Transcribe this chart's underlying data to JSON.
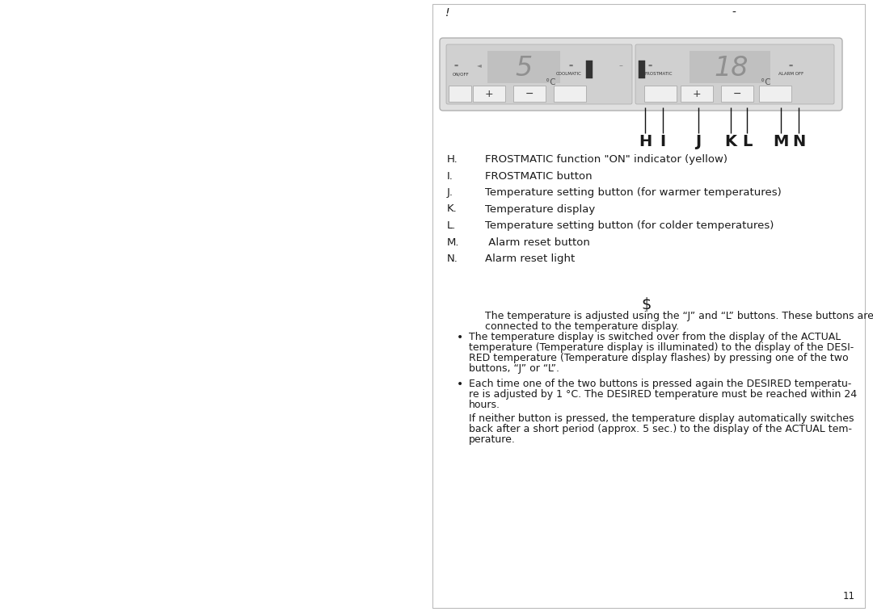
{
  "page_bg": "#ffffff",
  "border_color": "#aaaaaa",
  "text_color": "#1a1a1a",
  "header_left": "!",
  "header_right": "-",
  "items": [
    [
      "H.",
      "FROSTMATIC function \"ON\" indicator (yellow)"
    ],
    [
      "I.",
      "FROSTMATIC button"
    ],
    [
      "J.",
      "Temperature setting button (for warmer temperatures)"
    ],
    [
      "K.",
      "Temperature display"
    ],
    [
      "L.",
      "Temperature setting button (for colder temperatures)"
    ],
    [
      "M.",
      " Alarm reset button"
    ],
    [
      "N.",
      "Alarm reset light"
    ]
  ],
  "section_symbol": "$",
  "body_text_1a": "The temperature is adjusted using the “J” and “L” buttons. These buttons are",
  "body_text_1b": "connected to the temperature display.",
  "bullet_1_lines": [
    "The temperature display is switched over from the display of the ACTUAL",
    "temperature (Temperature display is illuminated) to the display of the DESI-",
    "RED temperature (Temperature display flashes) by pressing one of the two",
    "buttons, “J” or “L”."
  ],
  "bullet_2_lines": [
    "Each time one of the two buttons is pressed again the DESIRED temperatu-",
    "re is adjusted by 1 °C. The DESIRED temperature must be reached within 24",
    "hours."
  ],
  "body_text_2_lines": [
    "If neither button is pressed, the temperature display automatically switches",
    "back after a short period (approx. 5 sec.) to the display of the ACTUAL tem-",
    "perature."
  ],
  "page_number": "11"
}
